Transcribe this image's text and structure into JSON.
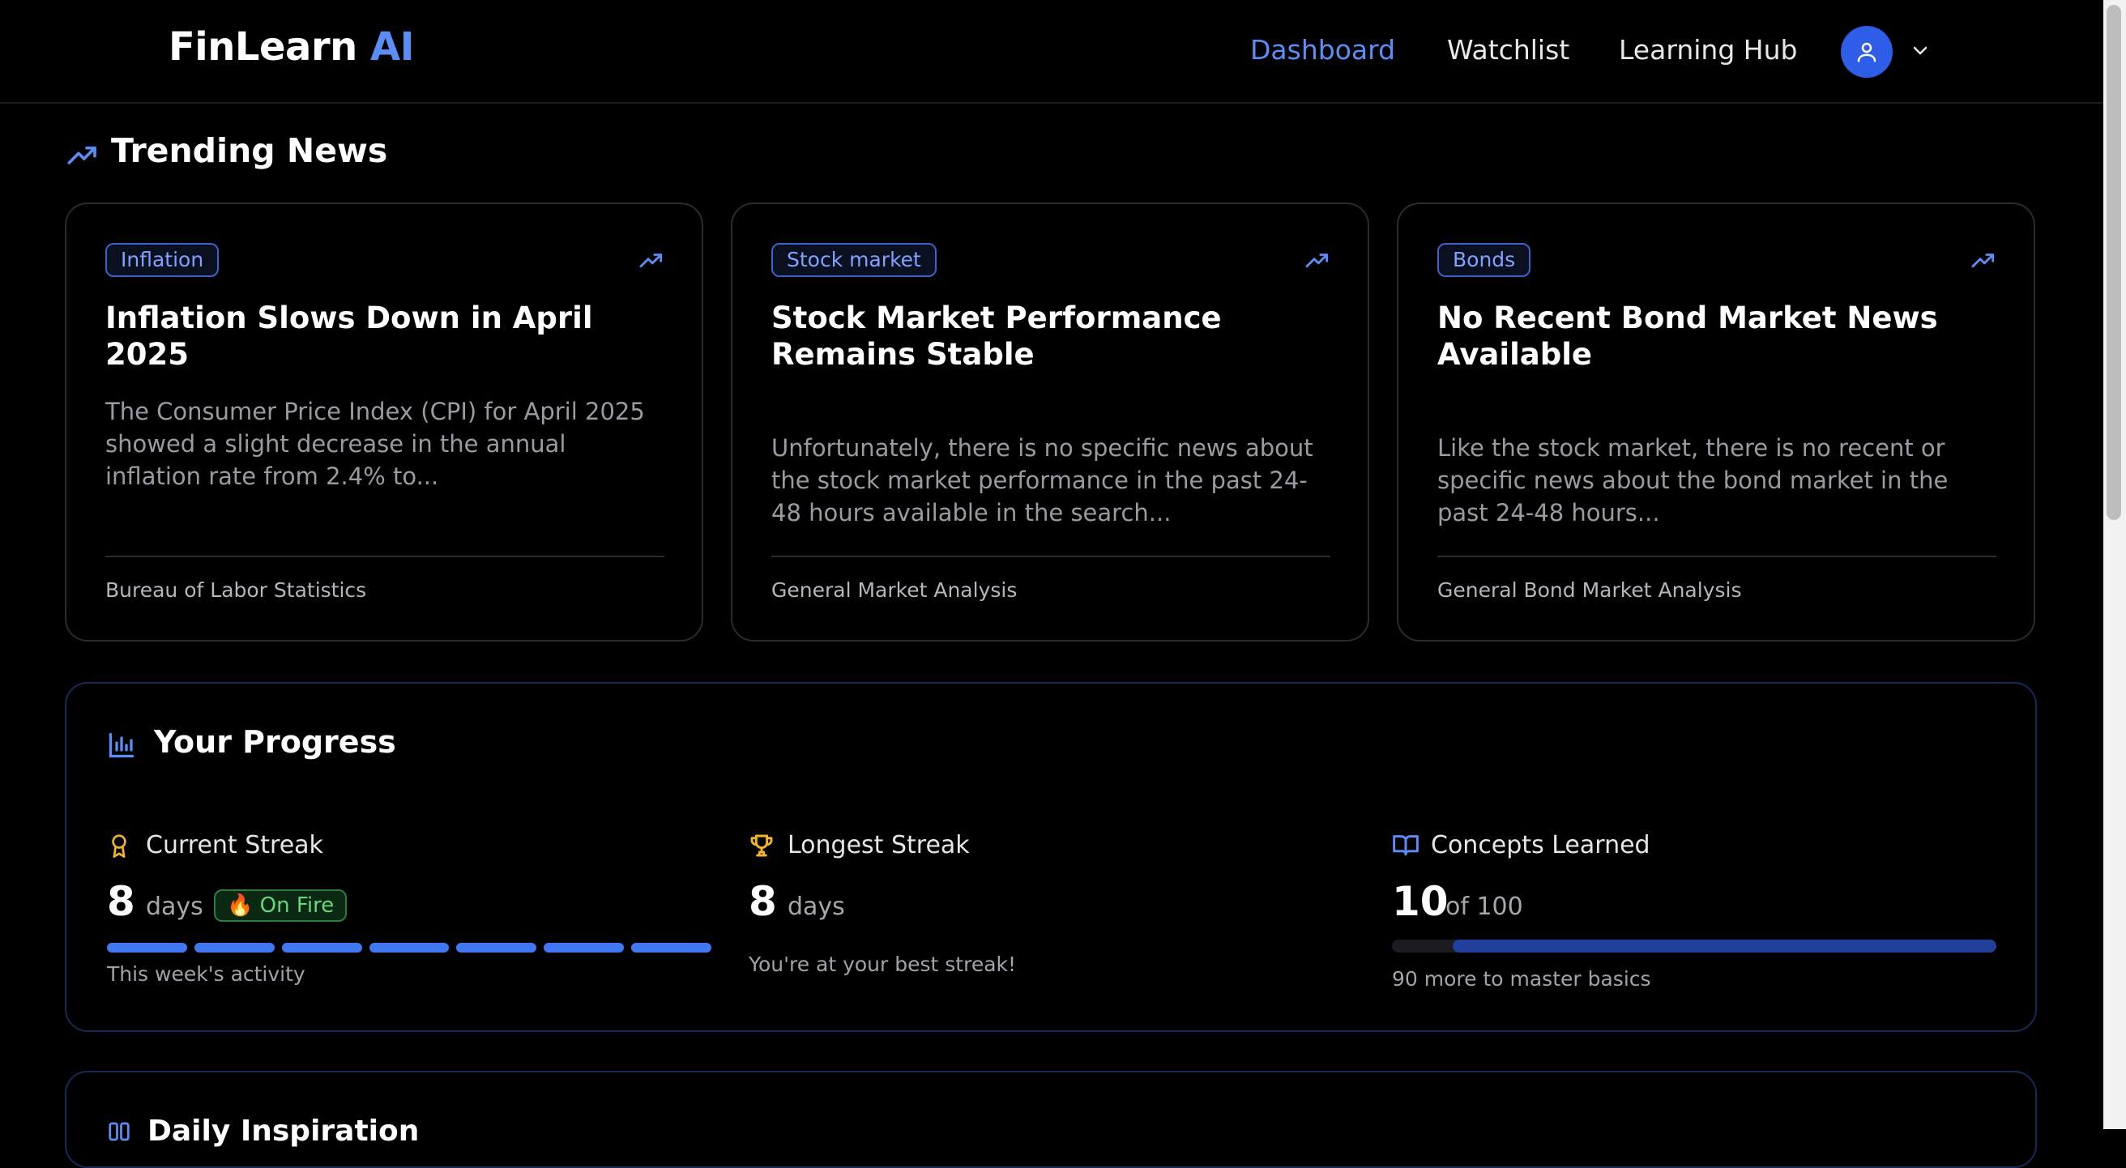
{
  "app": {
    "brand_main": "FinLearn",
    "brand_accent": "AI"
  },
  "nav": {
    "items": [
      "Dashboard",
      "Watchlist",
      "Learning Hub"
    ],
    "active": "Dashboard"
  },
  "colors": {
    "accent": "#5b8ef5",
    "avatar": "#2f5de8",
    "on_fire": "#67d77b",
    "streak_icon": "#f0b429",
    "progress_fill": "#233f9c"
  },
  "trending": {
    "title": "Trending News",
    "cards": [
      {
        "tag": "Inflation",
        "title": "Inflation Slows Down in April 2025",
        "body": "The Consumer Price Index (CPI) for April 2025 showed a slight decrease in the annual inflation rate from 2.4% to...",
        "source": "Bureau of Labor Statistics"
      },
      {
        "tag": "Stock market",
        "title": "Stock Market Performance Remains Stable",
        "body": "Unfortunately, there is no specific news about the stock market performance in the past 24-48 hours available in the search...",
        "source": "General Market Analysis"
      },
      {
        "tag": "Bonds",
        "title": "No Recent Bond Market News Available",
        "body": "Like the stock market, there is no recent or specific news about the bond market in the past 24-48 hours...",
        "source": "General Bond Market Analysis"
      }
    ]
  },
  "progress": {
    "title": "Your Progress",
    "current_streak": {
      "label": "Current Streak",
      "value": "8",
      "unit": "days",
      "badge": "🔥 On Fire",
      "activity_days_done": 7,
      "activity_days_total": 7,
      "note": "This week's activity"
    },
    "longest_streak": {
      "label": "Longest Streak",
      "value": "8",
      "unit": "days",
      "note": "You're at your best streak!"
    },
    "concepts": {
      "label": "Concepts Learned",
      "value": "10",
      "unit": "of 100",
      "learned": 10,
      "total": 100,
      "note": "90 more to master basics"
    }
  },
  "inspiration": {
    "title": "Daily Inspiration"
  }
}
